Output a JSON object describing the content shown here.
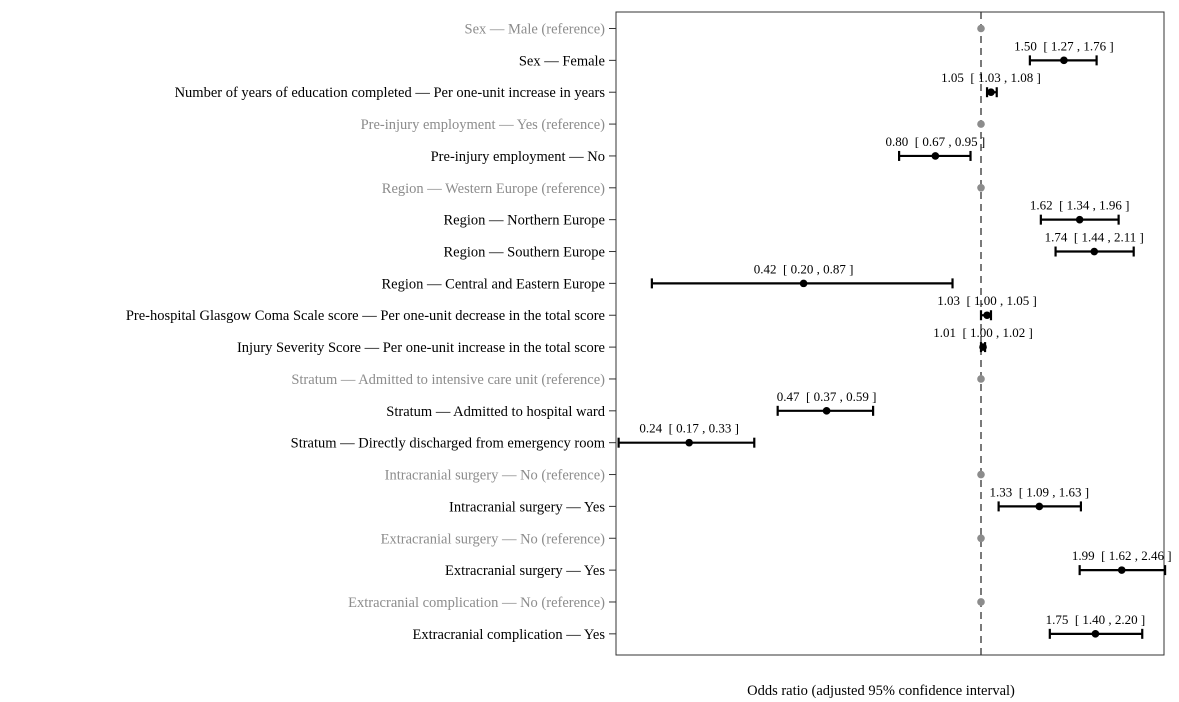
{
  "chart_data": {
    "type": "forest",
    "xlabel": "Odds ratio (adjusted 95% confidence interval)",
    "x_scale": "log",
    "xlim": [
      0.2,
      2.5
    ],
    "reference_line": 1.0,
    "grid": false,
    "legend": "none",
    "colors": {
      "estimate": "#000000",
      "reference": "#8c8c8c",
      "frame": "#333333"
    },
    "rows": [
      {
        "label": "Sex — Male (reference)",
        "reference": true,
        "or": 1.0
      },
      {
        "label": "Sex — Female",
        "reference": false,
        "or": 1.5,
        "lo": 1.27,
        "hi": 1.76,
        "text": "1.50  [ 1.27 , 1.76 ]"
      },
      {
        "label": "Number of years of education completed — Per one-unit increase in years",
        "reference": false,
        "or": 1.05,
        "lo": 1.03,
        "hi": 1.08,
        "text": "1.05  [ 1.03 , 1.08 ]"
      },
      {
        "label": "Pre-injury employment — Yes (reference)",
        "reference": true,
        "or": 1.0
      },
      {
        "label": "Pre-injury employment — No",
        "reference": false,
        "or": 0.8,
        "lo": 0.67,
        "hi": 0.95,
        "text": "0.80  [ 0.67 , 0.95 ]"
      },
      {
        "label": "Region — Western Europe (reference)",
        "reference": true,
        "or": 1.0
      },
      {
        "label": "Region — Northern Europe",
        "reference": false,
        "or": 1.62,
        "lo": 1.34,
        "hi": 1.96,
        "text": "1.62  [ 1.34 , 1.96 ]"
      },
      {
        "label": "Region — Southern Europe",
        "reference": false,
        "or": 1.74,
        "lo": 1.44,
        "hi": 2.11,
        "text": "1.74  [ 1.44 , 2.11 ]"
      },
      {
        "label": "Region — Central and Eastern Europe",
        "reference": false,
        "or": 0.42,
        "lo": 0.2,
        "hi": 0.87,
        "text": "0.42  [ 0.20 , 0.87 ]"
      },
      {
        "label": "Pre-hospital Glasgow Coma Scale score  — Per one-unit decrease in the total score",
        "reference": false,
        "or": 1.03,
        "lo": 1.0,
        "hi": 1.05,
        "text": "1.03  [ 1.00 , 1.05 ]"
      },
      {
        "label": "Injury Severity Score — Per one-unit increase in the total score",
        "reference": false,
        "or": 1.01,
        "lo": 1.0,
        "hi": 1.02,
        "text": "1.01  [ 1.00 , 1.02 ]"
      },
      {
        "label": "Stratum — Admitted to intensive care unit (reference)",
        "reference": true,
        "or": 1.0
      },
      {
        "label": "Stratum — Admitted to hospital ward",
        "reference": false,
        "or": 0.47,
        "lo": 0.37,
        "hi": 0.59,
        "text": "0.47  [ 0.37 , 0.59 ]"
      },
      {
        "label": "Stratum — Directly discharged from emergency room",
        "reference": false,
        "or": 0.24,
        "lo": 0.17,
        "hi": 0.33,
        "text": "0.24  [ 0.17 , 0.33 ]"
      },
      {
        "label": "Intracranial surgery — No (reference)",
        "reference": true,
        "or": 1.0
      },
      {
        "label": "Intracranial surgery — Yes",
        "reference": false,
        "or": 1.33,
        "lo": 1.09,
        "hi": 1.63,
        "text": "1.33  [ 1.09 , 1.63 ]"
      },
      {
        "label": "Extracranial surgery — No (reference)",
        "reference": true,
        "or": 1.0
      },
      {
        "label": "Extracranial surgery — Yes",
        "reference": false,
        "or": 1.99,
        "lo": 1.62,
        "hi": 2.46,
        "text": "1.99  [ 1.62 , 2.46 ]"
      },
      {
        "label": "Extracranial complication — No (reference)",
        "reference": true,
        "or": 1.0
      },
      {
        "label": "Extracranial complication — Yes",
        "reference": false,
        "or": 1.75,
        "lo": 1.4,
        "hi": 2.2,
        "text": "1.75  [ 1.40 , 2.20 ]"
      }
    ]
  }
}
